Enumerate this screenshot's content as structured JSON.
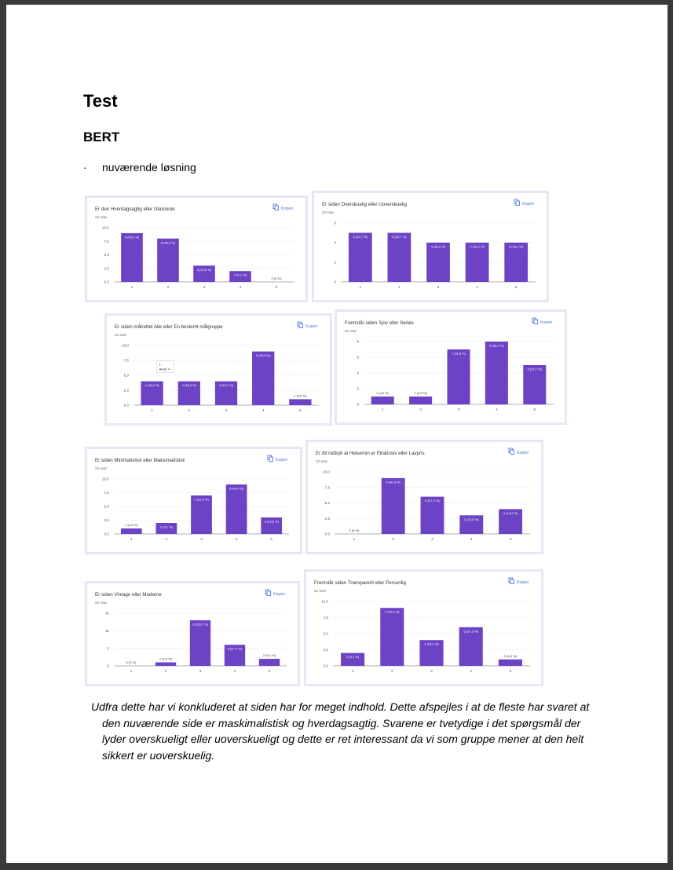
{
  "document": {
    "title": "Test",
    "section": "BERT",
    "bullet_marker": "·",
    "bullet_text": "nuværende løsning",
    "conclusion": "Udfra dette har vi konkluderet at siden har for meget indhold. Dette afspejles i at de fleste har svaret at den nuværende side er maskimalistisk og hverdagsagtig. Svarene er tvetydige i det spørgsmål der lyder overskueligt eller uoverskueligt og dette er ret interessant da vi som gruppe mener at den helt sikkert er uoverskuelig."
  },
  "ui": {
    "copy_label": "Kopier",
    "bar_color": "#6d43c6",
    "copy_color": "#4c78d6"
  },
  "chart_data": [
    {
      "type": "bar",
      "title": "Er den Hverdagsagtig eller Glamorøs",
      "subtitle": "22 svar",
      "categories": [
        "1",
        "2",
        "3",
        "4",
        "5"
      ],
      "values": [
        9,
        8,
        3,
        2,
        0
      ],
      "labels": [
        "9 (40,9 %)",
        "8 (36,4 %)",
        "3 (13,6 %)",
        "2 (9,1 %)",
        "0 (0 %)"
      ],
      "yticks": [
        "0,0",
        "2,5",
        "5,0",
        "7,5",
        "10,0"
      ],
      "ylim": [
        0,
        10
      ]
    },
    {
      "type": "bar",
      "title": "Er siden Overskuelig eller Uoverskuelig",
      "subtitle": "22 svar",
      "categories": [
        "1",
        "2",
        "3",
        "4",
        "5"
      ],
      "values": [
        5,
        5,
        4,
        4,
        4
      ],
      "labels": [
        "5 (22,7 %)",
        "5 (22,7 %)",
        "4 (18,2 %)",
        "4 (18,2 %)",
        "4 (18,2 %)"
      ],
      "yticks": [
        "0",
        "2",
        "4",
        "6"
      ],
      "ylim": [
        0,
        6
      ]
    },
    {
      "type": "bar",
      "title": "Er siden målrettet Alle eller En bestemt målgruppe",
      "subtitle": "22 svar",
      "categories": [
        "1",
        "2",
        "3",
        "4",
        "5"
      ],
      "values": [
        4,
        4,
        4,
        9,
        1
      ],
      "labels": [
        "4 (18,2 %)",
        "4 (18,2 %)",
        "4 (18,2 %)",
        "9 (40,9 %)",
        "1 (4,5 %)"
      ],
      "yticks": [
        "0,0",
        "2,5",
        "5,0",
        "7,5",
        "10,0"
      ],
      "ylim": [
        0,
        10
      ],
      "tooltip": {
        "title": "1",
        "text": "Antal: 4"
      }
    },
    {
      "type": "bar",
      "title": "Fremstår siden Sjov eller Seriøs",
      "subtitle": "22 svar",
      "categories": [
        "1",
        "2",
        "3",
        "4",
        "5"
      ],
      "values": [
        1,
        1,
        7,
        8,
        5
      ],
      "labels": [
        "1 (4,5 %)",
        "1 (4,5 %)",
        "7 (31,8 %)",
        "8 (36,4 %)",
        "5 (22,7 %)"
      ],
      "yticks": [
        "0",
        "2",
        "4",
        "6",
        "8"
      ],
      "ylim": [
        0,
        8
      ]
    },
    {
      "type": "bar",
      "title": "Er siden Minimalistisk eller Maksimalistisk",
      "subtitle": "22 svar",
      "categories": [
        "1",
        "2",
        "3",
        "4",
        "5"
      ],
      "values": [
        1,
        2,
        7,
        9,
        3
      ],
      "labels": [
        "1 (4,5 %)",
        "2 (9,1 %)",
        "7 (31,8 %)",
        "9 (40,9 %)",
        "3 (13,6 %)"
      ],
      "yticks": [
        "0,0",
        "2,5",
        "5,0",
        "7,5",
        "10,0"
      ],
      "ylim": [
        0,
        10
      ]
    },
    {
      "type": "bar",
      "title": "Er dit indtryk at Helsemin er Eksklusiv eller Lavpris",
      "subtitle": "22 svar",
      "categories": [
        "1",
        "2",
        "3",
        "4",
        "5"
      ],
      "values": [
        0,
        9,
        6,
        3,
        4
      ],
      "labels": [
        "0 (0 %)",
        "9 (40,9 %)",
        "6 (27,3 %)",
        "3 (13,6 %)",
        "4 (18,2 %)"
      ],
      "yticks": [
        "0,0",
        "2,5",
        "5,0",
        "7,5",
        "10,0"
      ],
      "ylim": [
        0,
        10
      ]
    },
    {
      "type": "bar",
      "title": "Er siden Vintage eller Moderne",
      "subtitle": "22 svar",
      "categories": [
        "1",
        "2",
        "3",
        "4",
        "5"
      ],
      "values": [
        0,
        1,
        13,
        6,
        2
      ],
      "labels": [
        "0 (0 %)",
        "1 (4,5 %)",
        "13 (59,1 %)",
        "6 (27,3 %)",
        "2 (9,1 %)"
      ],
      "yticks": [
        "0",
        "5",
        "10",
        "15"
      ],
      "ylim": [
        0,
        15
      ]
    },
    {
      "type": "bar",
      "title": "Fremstår siden Transparent eller Personlig",
      "subtitle": "22 svar",
      "categories": [
        "1",
        "2",
        "3",
        "4",
        "5"
      ],
      "values": [
        2,
        9,
        4,
        6,
        1
      ],
      "labels": [
        "2 (9,1 %)",
        "9 (40,9 %)",
        "4 (18,2 %)",
        "6 (27,3 %)",
        "1 (4,5 %)"
      ],
      "yticks": [
        "0,0",
        "2,5",
        "5,0",
        "7,5",
        "10,0"
      ],
      "ylim": [
        0,
        10
      ]
    }
  ]
}
